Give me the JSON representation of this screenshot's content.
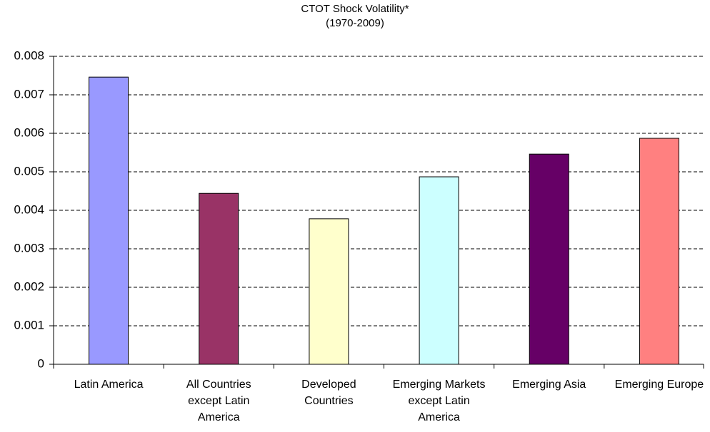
{
  "chart_data": {
    "type": "bar",
    "title": "CTOT Shock Volatility*",
    "subtitle": "(1970-2009)",
    "categories": [
      "Latin America",
      "All Countries except Latin America",
      "Developed Countries",
      "Emerging Markets except Latin America",
      "Emerging Asia",
      "Emerging Europe"
    ],
    "values": [
      0.00746,
      0.00444,
      0.00378,
      0.00487,
      0.00546,
      0.00587
    ],
    "colors": [
      "#9999ff",
      "#993366",
      "#ffffcc",
      "#ccffff",
      "#660066",
      "#ff8080"
    ],
    "ylim": [
      0,
      0.008
    ],
    "yticks": [
      0,
      0.001,
      0.002,
      0.003,
      0.004,
      0.005,
      0.006,
      0.007,
      0.008
    ],
    "grid": true
  }
}
